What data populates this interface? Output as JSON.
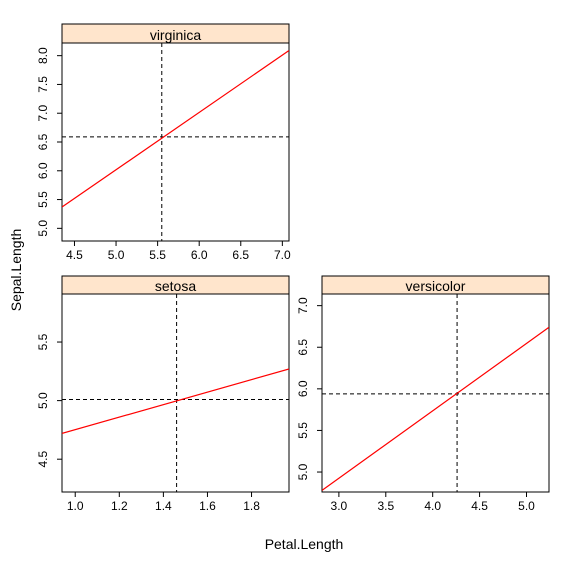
{
  "chart_data": {
    "type": "line",
    "xlabel": "Petal.Length",
    "ylabel": "Sepal.Length",
    "colors": {
      "line": "#ff0000",
      "strip": "#ffe5cc",
      "reference": "#000000"
    },
    "panels": [
      {
        "name": "virginica",
        "xlim": [
          4.35,
          7.08
        ],
        "ylim": [
          4.78,
          8.22
        ],
        "xticks": [
          "4.5",
          "5.0",
          "5.5",
          "6.0",
          "6.5",
          "7.0"
        ],
        "yticks": [
          "5.0",
          "5.5",
          "6.0",
          "6.5",
          "7.0",
          "7.5",
          "8.0"
        ],
        "line": {
          "x": [
            4.35,
            7.08
          ],
          "y": [
            5.37,
            8.09
          ]
        },
        "ref_x": 5.55,
        "ref_y": 6.59
      },
      {
        "name": "setosa",
        "xlim": [
          0.94,
          1.97
        ],
        "ylim": [
          4.22,
          5.91
        ],
        "xticks": [
          "1.0",
          "1.2",
          "1.4",
          "1.6",
          "1.8"
        ],
        "yticks": [
          "4.5",
          "5.0",
          "5.5"
        ],
        "line": {
          "x": [
            0.94,
            1.97
          ],
          "y": [
            4.72,
            5.27
          ]
        },
        "ref_x": 1.46,
        "ref_y": 5.01
      },
      {
        "name": "versicolor",
        "xlim": [
          2.82,
          5.24
        ],
        "ylim": [
          4.76,
          7.14
        ],
        "xticks": [
          "3.0",
          "3.5",
          "4.0",
          "4.5",
          "5.0"
        ],
        "yticks": [
          "5.0",
          "5.5",
          "6.0",
          "6.5",
          "7.0"
        ],
        "line": {
          "x": [
            2.82,
            5.24
          ],
          "y": [
            4.78,
            6.74
          ]
        },
        "ref_x": 4.26,
        "ref_y": 5.94
      }
    ]
  }
}
